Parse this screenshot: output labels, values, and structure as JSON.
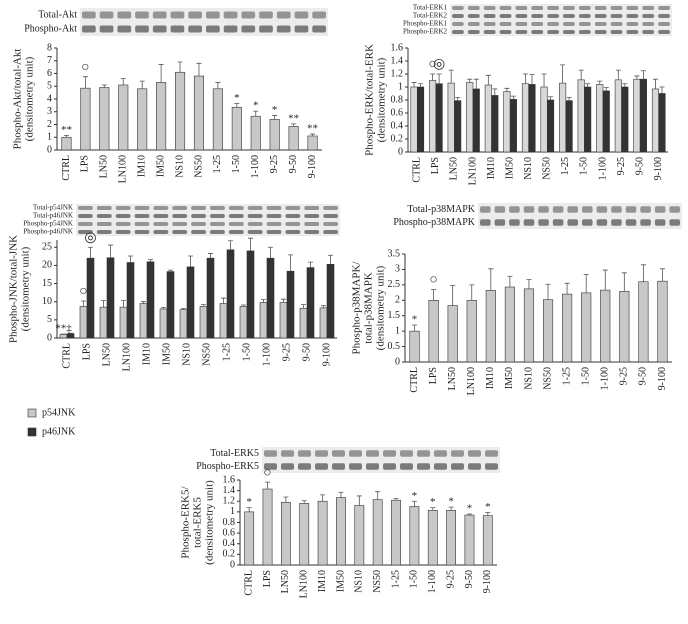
{
  "chart_data": [
    {
      "type": "bar",
      "blot_labels": [
        "Total-Akt",
        "Phospho-Akt"
      ],
      "ylabel": [
        "Phospho-Akt/total-Akt",
        "(densitometry unit)"
      ],
      "categories": [
        "CTRL",
        "LPS",
        "LN50",
        "LN100",
        "IM10",
        "IM50",
        "NS10",
        "NS50",
        "1-25",
        "1-50",
        "1-100",
        "9-25",
        "9-50",
        "9-100"
      ],
      "series": [
        {
          "color": "#c8c8c8",
          "values": [
            1.0,
            4.85,
            4.9,
            5.1,
            4.8,
            5.3,
            6.1,
            5.8,
            4.8,
            3.35,
            2.65,
            2.4,
            1.85,
            1.1
          ],
          "errors": [
            0.15,
            0.9,
            0.2,
            0.5,
            0.6,
            1.4,
            0.8,
            1.0,
            0.5,
            0.3,
            0.4,
            0.3,
            0.2,
            0.15
          ],
          "annotations": [
            "**",
            "○",
            null,
            null,
            null,
            null,
            null,
            null,
            null,
            "*",
            "*",
            "*",
            "**",
            "**"
          ]
        }
      ],
      "ylim": [
        0,
        8
      ],
      "yticks": [
        0,
        1,
        2,
        3,
        4,
        5,
        6,
        7,
        8
      ]
    },
    {
      "type": "bar",
      "blot_labels": [
        "Total-ERK1",
        "Total-ERK2",
        "Phospho-ERK1",
        "Phospho-ERK2"
      ],
      "ylabel": [
        "Phospho-ERK/total-ERK",
        "(densitometry unit)"
      ],
      "categories": [
        "CTRL",
        "LPS",
        "LN50",
        "LN100",
        "IM10",
        "IM50",
        "NS10",
        "NS50",
        "1-25",
        "1-50",
        "1-100",
        "9-25",
        "9-50",
        "9-100"
      ],
      "series": [
        {
          "color": "#d8d8d8",
          "values": [
            1.0,
            1.1,
            1.06,
            1.07,
            1.03,
            0.93,
            1.05,
            1.0,
            1.06,
            1.11,
            1.04,
            1.11,
            1.12,
            0.97
          ],
          "errors": [
            0.07,
            0.1,
            0.2,
            0.05,
            0.15,
            0.05,
            0.15,
            0.2,
            0.28,
            0.15,
            0.05,
            0.15,
            0.05,
            0.15
          ],
          "annotations": [
            null,
            "○",
            null,
            null,
            null,
            null,
            null,
            null,
            null,
            null,
            null,
            null,
            null,
            null
          ]
        },
        {
          "color": "#333333",
          "values": [
            1.0,
            1.05,
            0.79,
            0.97,
            0.87,
            0.81,
            1.04,
            0.8,
            0.79,
            1.0,
            0.94,
            1.0,
            1.12,
            0.9
          ],
          "errors": [
            0.05,
            0.15,
            0.05,
            0.15,
            0.1,
            0.05,
            0.15,
            0.05,
            0.05,
            0.05,
            0.05,
            0.05,
            0.13,
            0.1
          ],
          "annotations": [
            null,
            "◎",
            null,
            null,
            null,
            null,
            null,
            null,
            null,
            null,
            null,
            null,
            null,
            null
          ]
        }
      ],
      "ylim": [
        0,
        1.6
      ],
      "yticks": [
        0,
        0.2,
        0.4,
        0.6,
        0.8,
        1,
        1.2,
        1.4,
        1.6
      ]
    },
    {
      "type": "bar",
      "blot_labels": [
        "Total-p54JNK",
        "Total-p46JNK",
        "Phospho-p54JNK",
        "Phospho-p46JNK"
      ],
      "ylabel": [
        "Phospho-JNK/total-JNK",
        "(densitometry unit)"
      ],
      "categories": [
        "CTRL",
        "LPS",
        "LN50",
        "LN100",
        "IM10",
        "IM50",
        "NS10",
        "NS50",
        "1-25",
        "1-50",
        "1-100",
        "9-25",
        "9-50",
        "9-100"
      ],
      "series": [
        {
          "name": "p54JNK",
          "color": "#c8c8c8",
          "values": [
            1.0,
            8.7,
            8.5,
            8.5,
            9.5,
            8.0,
            7.8,
            8.7,
            9.5,
            8.7,
            9.8,
            9.8,
            8.2,
            8.3
          ],
          "errors": [
            0.1,
            1.5,
            1.8,
            1.8,
            0.5,
            0.4,
            0.3,
            0.5,
            1.5,
            0.4,
            0.8,
            0.9,
            1.0,
            0.6
          ],
          "annotations": [
            "**‡",
            "○",
            null,
            null,
            null,
            null,
            null,
            null,
            null,
            null,
            null,
            null,
            null,
            null
          ]
        },
        {
          "name": "p46JNK",
          "color": "#333333",
          "values": [
            1.2,
            22.0,
            22.1,
            20.8,
            21.0,
            18.3,
            19.6,
            22.0,
            24.3,
            24.0,
            22.0,
            18.4,
            19.4,
            20.3
          ],
          "errors": [
            0.1,
            3.0,
            3.5,
            1.8,
            0.6,
            0.4,
            3.0,
            1.3,
            2.5,
            3.5,
            3.0,
            4.5,
            1.5,
            2.5
          ],
          "annotations": [
            null,
            "◎",
            null,
            null,
            null,
            null,
            null,
            null,
            null,
            null,
            null,
            null,
            null,
            null
          ]
        }
      ],
      "ylim": [
        0,
        27
      ],
      "yticks": [
        0,
        5,
        10,
        15,
        20,
        25
      ]
    },
    {
      "type": "bar",
      "blot_labels": [
        "Total-p38MAPK",
        "Phospho-p38MAPK"
      ],
      "ylabel": [
        "Phospho-p38MAPK/",
        "total-p38MAPK",
        "(densitometry unit)"
      ],
      "categories": [
        "CTRL",
        "LPS",
        "LN50",
        "LN100",
        "IM10",
        "IM50",
        "NS10",
        "NS50",
        "1-25",
        "1-50",
        "1-100",
        "9-25",
        "9-50",
        "9-100"
      ],
      "series": [
        {
          "color": "#c8c8c8",
          "values": [
            1.0,
            2.0,
            1.83,
            2.0,
            2.32,
            2.43,
            2.37,
            2.02,
            2.2,
            2.24,
            2.33,
            2.29,
            2.6,
            2.62
          ],
          "errors": [
            0.2,
            0.35,
            0.65,
            0.5,
            0.7,
            0.35,
            0.3,
            0.5,
            0.35,
            0.6,
            0.65,
            0.6,
            0.55,
            0.4
          ],
          "annotations": [
            "*",
            "○",
            null,
            null,
            null,
            null,
            null,
            null,
            null,
            null,
            null,
            null,
            null,
            null
          ]
        }
      ],
      "ylim": [
        0,
        3.5
      ],
      "yticks": [
        0,
        0.5,
        1,
        1.5,
        2,
        2.5,
        3,
        3.5
      ]
    },
    {
      "type": "bar",
      "blot_labels": [
        "Total-ERK5",
        "Phospho-ERK5"
      ],
      "ylabel": [
        "Phospho-ERK5/",
        "total-ERK5",
        "(densitometry unit)"
      ],
      "categories": [
        "CTRL",
        "LPS",
        "LN50",
        "LN100",
        "IM10",
        "IM50",
        "NS10",
        "NS50",
        "1-25",
        "1-50",
        "1-100",
        "9-25",
        "9-50",
        "9-100"
      ],
      "series": [
        {
          "color": "#c8c8c8",
          "values": [
            1.0,
            1.43,
            1.18,
            1.16,
            1.2,
            1.27,
            1.12,
            1.23,
            1.22,
            1.1,
            1.03,
            1.03,
            0.94,
            0.93
          ],
          "errors": [
            0.08,
            0.13,
            0.1,
            0.05,
            0.12,
            0.1,
            0.18,
            0.15,
            0.03,
            0.1,
            0.05,
            0.06,
            0.02,
            0.06
          ],
          "annotations": [
            "*",
            "○",
            null,
            null,
            null,
            null,
            null,
            null,
            null,
            "*",
            "*",
            "*",
            "*",
            "*"
          ]
        }
      ],
      "ylim": [
        0,
        1.6
      ],
      "yticks": [
        0,
        0.2,
        0.4,
        0.6,
        0.8,
        1,
        1.2,
        1.4,
        1.6
      ]
    }
  ]
}
